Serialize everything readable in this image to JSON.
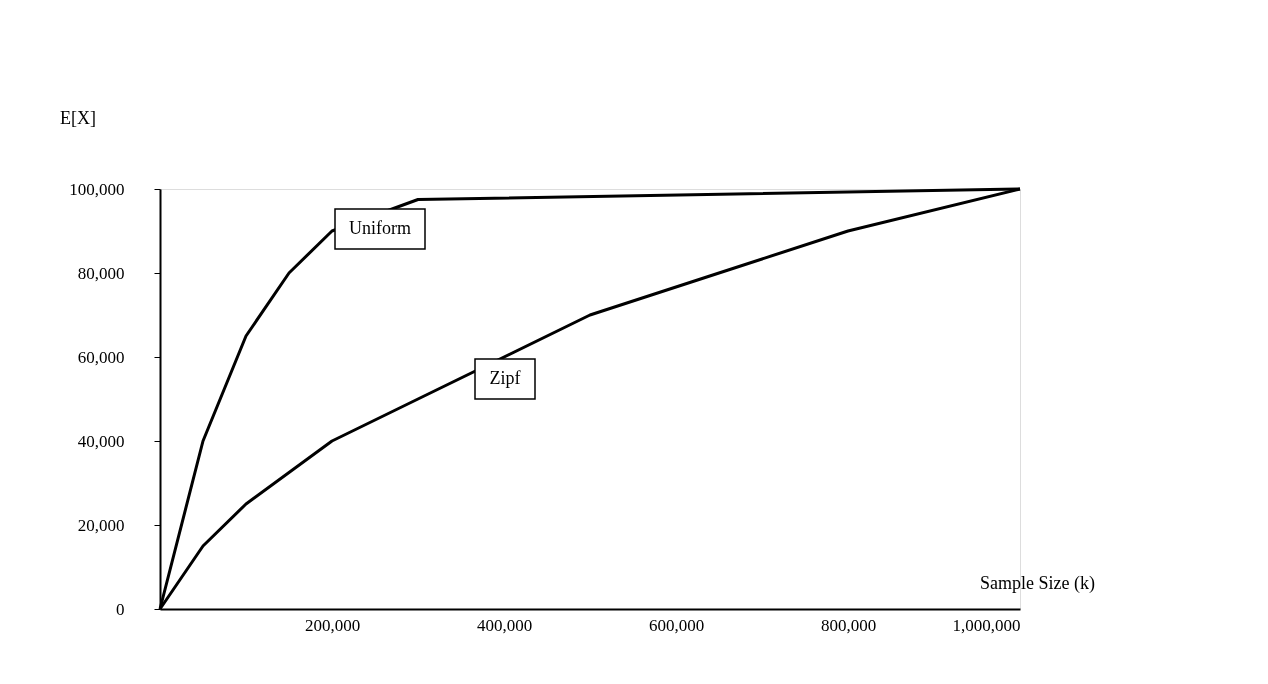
{
  "chart_data": {
    "type": "line",
    "xlabel": "Sample Size (k)",
    "ylabel": "E[X]",
    "series": [
      {
        "name": "Uniform",
        "color": "#000000",
        "x": [
          0,
          50000,
          100000,
          150000,
          200000,
          300000,
          1000000
        ],
        "values": [
          0,
          40000,
          65000,
          80000,
          90000,
          97500,
          100000
        ]
      },
      {
        "name": "Zipf",
        "color": "#000000",
        "x": [
          0,
          50000,
          100000,
          200000,
          300000,
          500000,
          650000,
          800000,
          1000000
        ],
        "values": [
          0,
          15000,
          25000,
          40000,
          50000,
          70000,
          80000,
          90000,
          100000
        ]
      }
    ],
    "xlim": [
      0,
      1000000
    ],
    "xticks": [
      {
        "value": 200000,
        "label": "200,000"
      },
      {
        "value": 400000,
        "label": "400,000"
      },
      {
        "value": 600000,
        "label": "600,000"
      },
      {
        "value": 800000,
        "label": "800,000"
      },
      {
        "value": 1000000,
        "label": "1,000,000"
      }
    ],
    "ylim": [
      0,
      100000
    ],
    "yticks": [
      0,
      {
        "value": 20000,
        "label": "20,000"
      },
      {
        "value": 40000,
        "label": "40,000"
      },
      {
        "value": 60000,
        "label": "60,000"
      },
      {
        "value": 80000,
        "label": "80,000"
      },
      {
        "value": 100000,
        "label": "100,000"
      }
    ],
    "grid": false,
    "marker": "none",
    "line_style": "solid"
  }
}
